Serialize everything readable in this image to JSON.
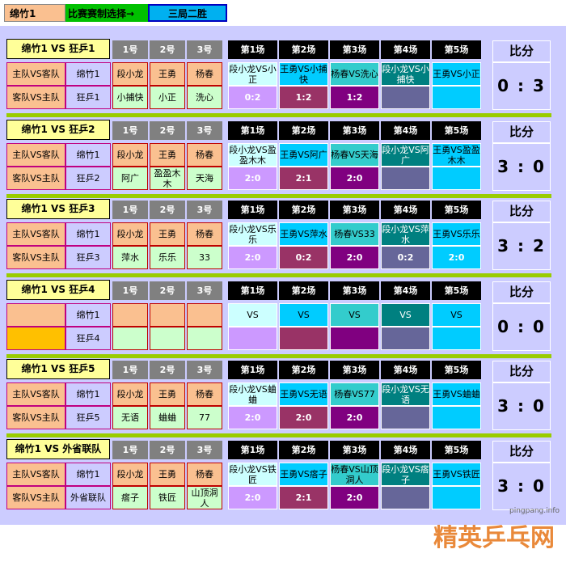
{
  "top": {
    "team": "绵竹1",
    "format_label": "比赛赛制选择→",
    "format_value": "三局二胜"
  },
  "headers": {
    "numbers": [
      "1号",
      "2号",
      "3号"
    ],
    "games": [
      "第1场",
      "第2场",
      "第3场",
      "第4场",
      "第5场"
    ],
    "score": "比分"
  },
  "labels": {
    "home_away": "主队VS客队",
    "away_home": "客队VS主队"
  },
  "matches": [
    {
      "title": "绵竹1 VS 狂乒1",
      "team": "绵竹1",
      "opponent": "狂乒1",
      "show_labels": true,
      "players": [
        "段小龙",
        "王勇",
        "杨春"
      ],
      "opponents": [
        "小捕快",
        "小正",
        "洗心"
      ],
      "games": [
        "段小龙VS小正",
        "王勇VS小捕快",
        "杨春VS洗心",
        "段小龙VS小捕快",
        "王勇VS小正"
      ],
      "results": [
        "0:2",
        "1:2",
        "1:2",
        "",
        ""
      ],
      "score": "0 : 3"
    },
    {
      "title": "绵竹1 VS 狂乒2",
      "team": "绵竹1",
      "opponent": "狂乒2",
      "show_labels": true,
      "players": [
        "段小龙",
        "王勇",
        "杨春"
      ],
      "opponents": [
        "阿广",
        "盈盈木木",
        "天海"
      ],
      "games": [
        "段小龙VS盈盈木木",
        "王勇VS阿广",
        "杨春VS天海",
        "段小龙VS阿广",
        "王勇VS盈盈木木"
      ],
      "results": [
        "2:0",
        "2:1",
        "2:0",
        "",
        ""
      ],
      "score": "3 : 0"
    },
    {
      "title": "绵竹1 VS 狂乒3",
      "team": "绵竹1",
      "opponent": "狂乒3",
      "show_labels": true,
      "players": [
        "段小龙",
        "王勇",
        "杨春"
      ],
      "opponents": [
        "萍水",
        "乐乐",
        "33"
      ],
      "games": [
        "段小龙VS乐乐",
        "王勇VS萍水",
        "杨春VS33",
        "段小龙VS萍水",
        "王勇VS乐乐"
      ],
      "results": [
        "2:0",
        "0:2",
        "2:0",
        "0:2",
        "2:0"
      ],
      "score": "3 : 2"
    },
    {
      "title": "绵竹1 VS 狂乒4",
      "team": "绵竹1",
      "opponent": "狂乒4",
      "show_labels": false,
      "players": [
        "",
        "",
        ""
      ],
      "opponents": [
        "",
        "",
        ""
      ],
      "games": [
        "VS",
        "VS",
        "VS",
        "VS",
        "VS"
      ],
      "results": [
        "",
        "",
        "",
        "",
        ""
      ],
      "score": "0 : 0"
    },
    {
      "title": "绵竹1 VS 狂乒5",
      "team": "绵竹1",
      "opponent": "狂乒5",
      "show_labels": true,
      "players": [
        "段小龙",
        "王勇",
        "杨春"
      ],
      "opponents": [
        "无语",
        "蛐蛐",
        "77"
      ],
      "games": [
        "段小龙VS蛐蛐",
        "王勇VS无语",
        "杨春VS77",
        "段小龙VS无语",
        "王勇VS蛐蛐"
      ],
      "results": [
        "2:0",
        "2:0",
        "2:0",
        "",
        ""
      ],
      "score": "3 : 0"
    },
    {
      "title": "绵竹1 VS 外省联队",
      "team": "绵竹1",
      "opponent": "外省联队",
      "show_labels": true,
      "players": [
        "段小龙",
        "王勇",
        "杨春"
      ],
      "opponents": [
        "瘩子",
        "铁匠",
        "山顶洞人"
      ],
      "games": [
        "段小龙VS铁匠",
        "王勇VS瘩子",
        "杨春VS山顶洞人",
        "段小龙VS瘩子",
        "王勇VS铁匠"
      ],
      "results": [
        "2:0",
        "2:1",
        "2:0",
        "",
        ""
      ],
      "score": "3 : 0"
    }
  ],
  "game_colors": [
    "#ccffff",
    "#00ccff",
    "#33cccc",
    "#008080",
    "#00ccff"
  ],
  "result_colors": [
    "#cc99ff",
    "#993366",
    "#800080",
    "#666699",
    "#00ccff"
  ],
  "watermark": "精英乒乓网",
  "watermark_url": "pingpang.info"
}
